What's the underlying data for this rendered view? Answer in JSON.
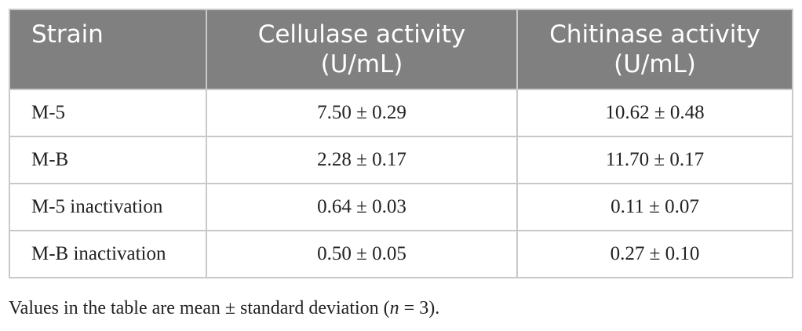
{
  "table": {
    "headers": {
      "strain": "Strain",
      "cellulase_line1": "Cellulase activity",
      "cellulase_line2": "(U/mL)",
      "chitinase_line1": "Chitinase activity",
      "chitinase_line2": "(U/mL)"
    },
    "rows": [
      {
        "strain": "M-5",
        "cellulase": "7.50 ± 0.29",
        "chitinase": "10.62 ± 0.48"
      },
      {
        "strain": "M-B",
        "cellulase": "2.28 ± 0.17",
        "chitinase": "11.70 ± 0.17"
      },
      {
        "strain": "M-5 inactivation",
        "cellulase": "0.64 ± 0.03",
        "chitinase": "0.11 ± 0.07"
      },
      {
        "strain": "M-B inactivation",
        "cellulase": "0.50 ± 0.05",
        "chitinase": "0.27 ± 0.10"
      }
    ]
  },
  "footnote": {
    "prefix": "Values in the table are mean ± standard deviation (",
    "italic": "n",
    "suffix": " = 3)."
  },
  "colors": {
    "header_background": "#808080",
    "header_text": "#ffffff",
    "border": "#c9c9c9"
  }
}
